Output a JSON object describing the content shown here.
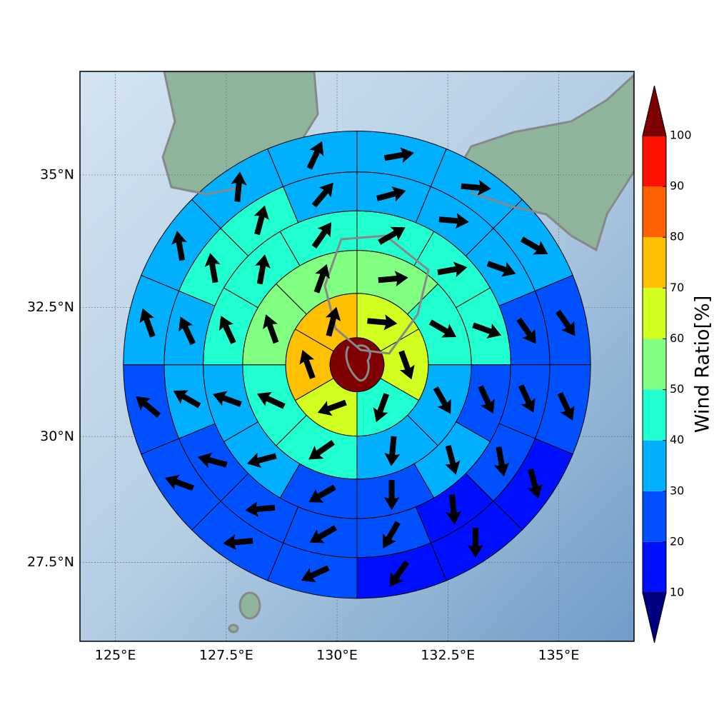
{
  "chart_data": {
    "type": "polar_sector_map",
    "xlim": [
      124.2,
      136.7
    ],
    "ylim": [
      25.9,
      36.9
    ],
    "xticks": [
      {
        "value": 125,
        "label": "125°E"
      },
      {
        "value": 127.5,
        "label": "127.5°E"
      },
      {
        "value": 130,
        "label": "130°E"
      },
      {
        "value": 132.5,
        "label": "132.5°E"
      },
      {
        "value": 135,
        "label": "135°E"
      }
    ],
    "yticks": [
      {
        "value": 27.5,
        "label": "27.5°N"
      },
      {
        "value": 30,
        "label": "30°N"
      },
      {
        "value": 32.5,
        "label": "32.5°N"
      },
      {
        "value": 35,
        "label": "35°N"
      }
    ],
    "grid": true,
    "center": [
      130.45,
      31.4
    ],
    "ring_edges": [
      0.61,
      1.61,
      2.58,
      3.47,
      4.35,
      5.27
    ],
    "center_value": 105,
    "rings": [
      {
        "values": [
          65,
          65,
          45,
          65,
          75,
          75
        ],
        "directions": [
          95,
          160,
          200,
          250,
          340,
          15
        ]
      },
      {
        "values": [
          55,
          45,
          35,
          35,
          45,
          45,
          55,
          55
        ],
        "directions": [
          85,
          120,
          150,
          185,
          235,
          295,
          340,
          20
        ]
      },
      {
        "values": [
          45,
          45,
          45,
          25,
          35,
          25,
          25,
          35,
          35,
          45,
          45,
          45
        ],
        "directions": [
          60,
          80,
          110,
          155,
          165,
          180,
          240,
          255,
          290,
          335,
          10,
          35
        ]
      },
      {
        "values": [
          35,
          35,
          35,
          25,
          25,
          25,
          15,
          25,
          25,
          25,
          25,
          35,
          35,
          45,
          45,
          35
        ],
        "directions": [
          75,
          95,
          110,
          145,
          155,
          170,
          175,
          210,
          240,
          265,
          285,
          300,
          335,
          350,
          15,
          40
        ]
      },
      {
        "values": [
          35,
          35,
          35,
          25,
          25,
          15,
          15,
          15,
          25,
          25,
          25,
          25,
          35,
          35,
          35,
          35
        ],
        "directions": [
          80,
          95,
          120,
          145,
          155,
          165,
          180,
          215,
          245,
          265,
          290,
          310,
          340,
          350,
          5,
          25
        ]
      }
    ],
    "colorbar": {
      "label": "Wind Ratio[%]",
      "levels": [
        10,
        20,
        30,
        40,
        50,
        60,
        70,
        80,
        90,
        100
      ],
      "colors": [
        "#0010ff",
        "#0050ff",
        "#00b0ff",
        "#20ffd0",
        "#80ff80",
        "#d0ff20",
        "#ffc000",
        "#ff6000",
        "#ff1000"
      ],
      "under": "#00007f",
      "over": "#7f0000"
    }
  }
}
